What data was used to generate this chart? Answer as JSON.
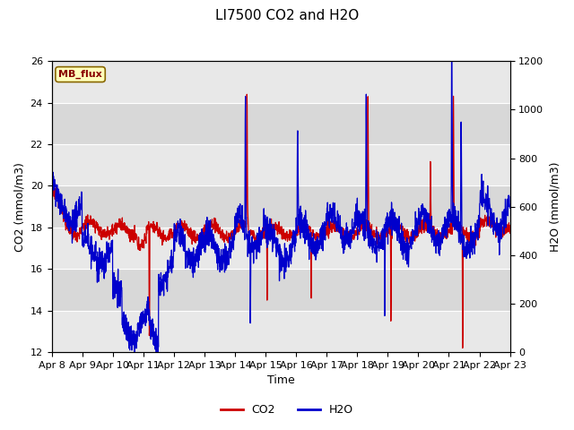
{
  "title": "LI7500 CO2 and H2O",
  "xlabel": "Time",
  "ylabel_left": "CO2 (mmol/m3)",
  "ylabel_right": "H2O (mmol/m3)",
  "co2_color": "#cc0000",
  "h2o_color": "#0000cc",
  "ylim_left": [
    12,
    26
  ],
  "ylim_right": [
    0,
    1200
  ],
  "yticks_left": [
    12,
    14,
    16,
    18,
    20,
    22,
    24,
    26
  ],
  "yticks_right": [
    0,
    200,
    400,
    600,
    800,
    1000,
    1200
  ],
  "xtick_labels": [
    "Apr 8",
    "Apr 9",
    "Apr 10",
    "Apr 11",
    "Apr 12",
    "Apr 13",
    "Apr 14",
    "Apr 15",
    "Apr 16",
    "Apr 17",
    "Apr 18",
    "Apr 19",
    "Apr 20",
    "Apr 21",
    "Apr 22",
    "Apr 23"
  ],
  "background_color": "#ffffff",
  "band_colors": [
    "#e8e8e8",
    "#d8d8d8"
  ],
  "grid_color": "#ffffff",
  "annotation_text": "MB_flux",
  "annotation_bg": "#ffffbb",
  "annotation_border": "#886600",
  "annotation_text_color": "#880000",
  "legend_entries": [
    "CO2",
    "H2O"
  ],
  "title_fontsize": 11,
  "axis_label_fontsize": 9,
  "tick_fontsize": 8
}
